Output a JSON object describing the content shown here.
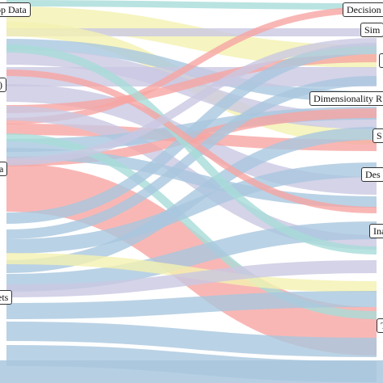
{
  "colors": {
    "blue": "#a9c7de",
    "red": "#f6a5a2",
    "purple": "#c9c8e2",
    "yellow": "#f4f1b0",
    "teal": "#a8dcd8"
  },
  "sources": [
    {
      "label": "op Data"
    },
    {
      "label": ")"
    },
    {
      "label": "a"
    },
    {
      "label": "ets"
    }
  ],
  "targets": [
    {
      "label": "Decision"
    },
    {
      "label": "Sim"
    },
    {
      "label": "I"
    },
    {
      "label": "Dimensionality R"
    },
    {
      "label": "S"
    },
    {
      "label": "Des"
    },
    {
      "label": "Ina"
    },
    {
      "label": "T"
    }
  ]
}
